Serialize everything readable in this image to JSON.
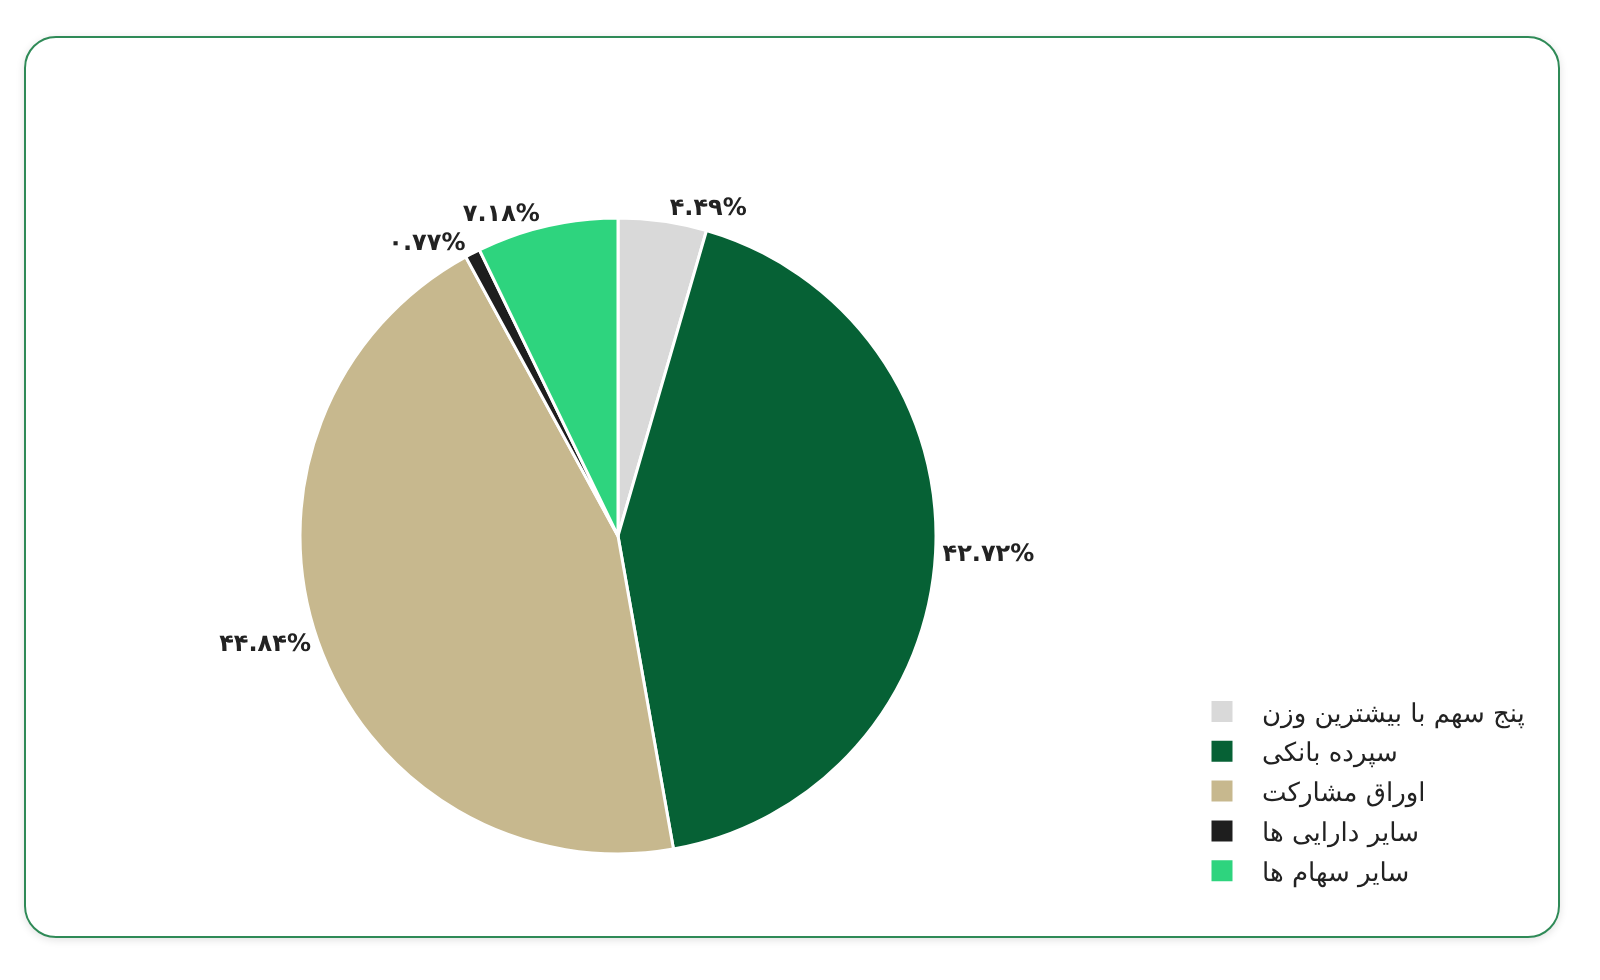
{
  "chart_data": {
    "type": "pie",
    "categories": [
      "پنج سهم با بیشترین وزن",
      "سپرده بانکی",
      "اوراق مشارکت",
      "سایر دارایی ها",
      "سایر سهام ها"
    ],
    "values": [
      4.49,
      42.72,
      44.84,
      0.77,
      7.18
    ],
    "colors": [
      "#d9d9d9",
      "#066135",
      "#c7b88e",
      "#1e1e1e",
      "#2ed47e"
    ],
    "value_labels": [
      "۴.۴۹%",
      "۴۲.۷۲%",
      "۴۴.۸۴%",
      "۰.۷۷%",
      "۷.۱۸%"
    ],
    "legend": "right"
  }
}
